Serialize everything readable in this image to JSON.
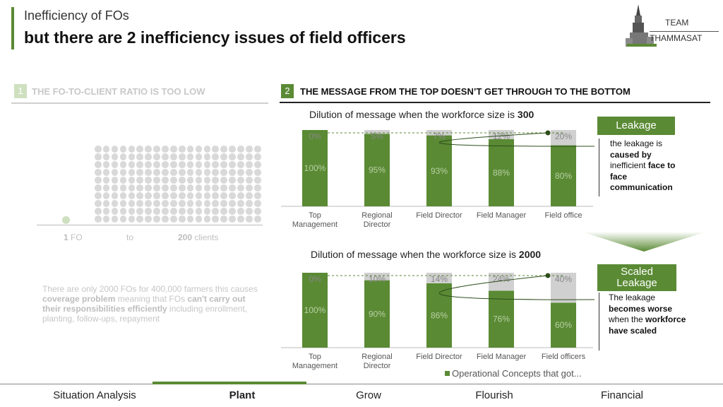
{
  "header": {
    "subtitle": "Inefficiency of FOs",
    "title": "but there are 2 inefficiency issues of field officers",
    "team_line1": "TEAM",
    "team_line2": "THAMMASAT"
  },
  "section1": {
    "number": "1",
    "title": "THE FO-TO-CLIENT RATIO IS TOO LOW",
    "fo_count": "1",
    "fo_unit": "FO",
    "to": "to",
    "client_count": "200",
    "client_unit": "clients",
    "desc_part1": "There are only 2000 FOs for 400,000 farmers this causes ",
    "desc_bold1": "coverage problem",
    "desc_part2": " meaning that FOs ",
    "desc_bold2": "can't carry out their responsibilities efficiently",
    "desc_part3": " including enrollment, planting, follow-ups, repayment"
  },
  "section2": {
    "number": "2",
    "title": "THE MESSAGE FROM THE TOP DOESN’T GET THROUGH TO THE BOTTOM"
  },
  "colors": {
    "green": "#5a8a34",
    "gray": "#d0d0d0",
    "light_green": "#cfe0c0"
  },
  "chart_data": [
    {
      "type": "bar",
      "stacked": true,
      "title_prefix": "Dilution of message when the workforce size is ",
      "title_value": "300",
      "categories": [
        "Top Management",
        "Regional Director",
        "Field Director",
        "Field Manager",
        "Field office"
      ],
      "category_lines": [
        [
          "Top",
          "Management"
        ],
        [
          "Regional",
          "Director"
        ],
        [
          "Field Director"
        ],
        [
          "Field Manager"
        ],
        [
          "Field office"
        ]
      ],
      "series": [
        {
          "name": "Operational Concepts that got...",
          "values": [
            100,
            95,
            93,
            88,
            80
          ],
          "labels": [
            "100%",
            "95%",
            "93%",
            "88%",
            "80%"
          ]
        },
        {
          "name": "Leakage",
          "values": [
            0,
            5,
            7,
            12,
            20
          ],
          "labels": [
            "0%",
            "5%",
            "7%",
            "12%",
            "20%"
          ]
        }
      ],
      "ylim": [
        0,
        100
      ]
    },
    {
      "type": "bar",
      "stacked": true,
      "title_prefix": "Dilution of message when the workforce size is ",
      "title_value": "2000",
      "categories": [
        "Top Management",
        "Regional Director",
        "Field Director",
        "Field Manager",
        "Field officers"
      ],
      "category_lines": [
        [
          "Top",
          "Management"
        ],
        [
          "Regional",
          "Director"
        ],
        [
          "Field Director"
        ],
        [
          "Field Manager"
        ],
        [
          "Field officers"
        ]
      ],
      "series": [
        {
          "name": "Operational Concepts that got...",
          "values": [
            100,
            90,
            86,
            76,
            60
          ],
          "labels": [
            "100%",
            "90%",
            "86%",
            "76%",
            "60%"
          ]
        },
        {
          "name": "Leakage",
          "values": [
            0,
            10,
            14,
            24,
            40
          ],
          "labels": [
            "0%",
            "10%",
            "14%",
            "24%",
            "40%"
          ]
        }
      ],
      "ylim": [
        0,
        100
      ]
    }
  ],
  "leakage": {
    "label": "Leakage",
    "text_1": "the leakage is ",
    "text_bold1": "caused by",
    "text_2": " inefficient ",
    "text_bold2": "face to face communication"
  },
  "scaled_leakage": {
    "label_line1": "Scaled",
    "label_line2": "Leakage",
    "text_1": "The leakage ",
    "text_bold1": "becomes worse",
    "text_2": " when the ",
    "text_bold2": "workforce have scaled"
  },
  "legend": {
    "label": "Operational Concepts that got..."
  },
  "nav": {
    "items": [
      "Situation Analysis",
      "Plant",
      "Grow",
      "Flourish",
      "Financial"
    ],
    "active": "Plant"
  }
}
